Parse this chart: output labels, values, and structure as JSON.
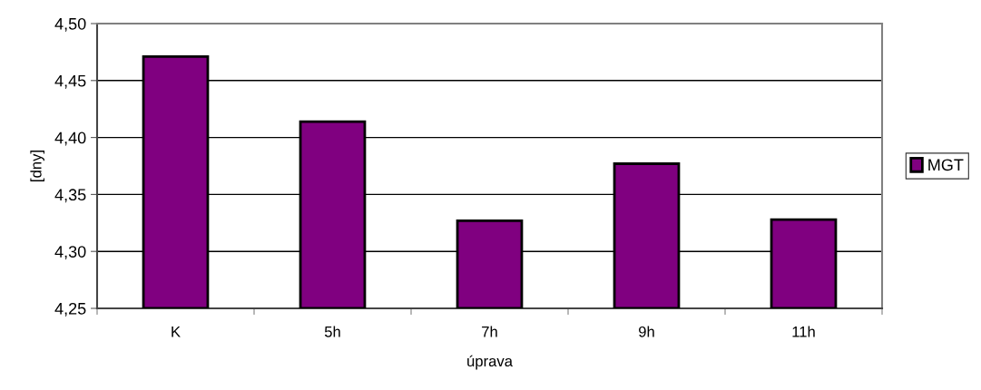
{
  "chart_data": {
    "type": "bar",
    "xlabel": "úprava",
    "ylabel": "[dny]",
    "categories": [
      "K",
      "5h",
      "7h",
      "9h",
      "11h"
    ],
    "series": [
      {
        "name": "MGT",
        "color": "#800080",
        "values": [
          4.471,
          4.414,
          4.327,
          4.377,
          4.328
        ]
      }
    ],
    "ylim": [
      4.25,
      4.5
    ],
    "yticks": [
      {
        "value": 4.25,
        "label": "4,25"
      },
      {
        "value": 4.3,
        "label": "4,30"
      },
      {
        "value": 4.35,
        "label": "4,35"
      },
      {
        "value": 4.4,
        "label": "4,40"
      },
      {
        "value": 4.45,
        "label": "4,45"
      },
      {
        "value": 4.5,
        "label": "4,50"
      }
    ],
    "grid": "y",
    "legend": "right"
  }
}
